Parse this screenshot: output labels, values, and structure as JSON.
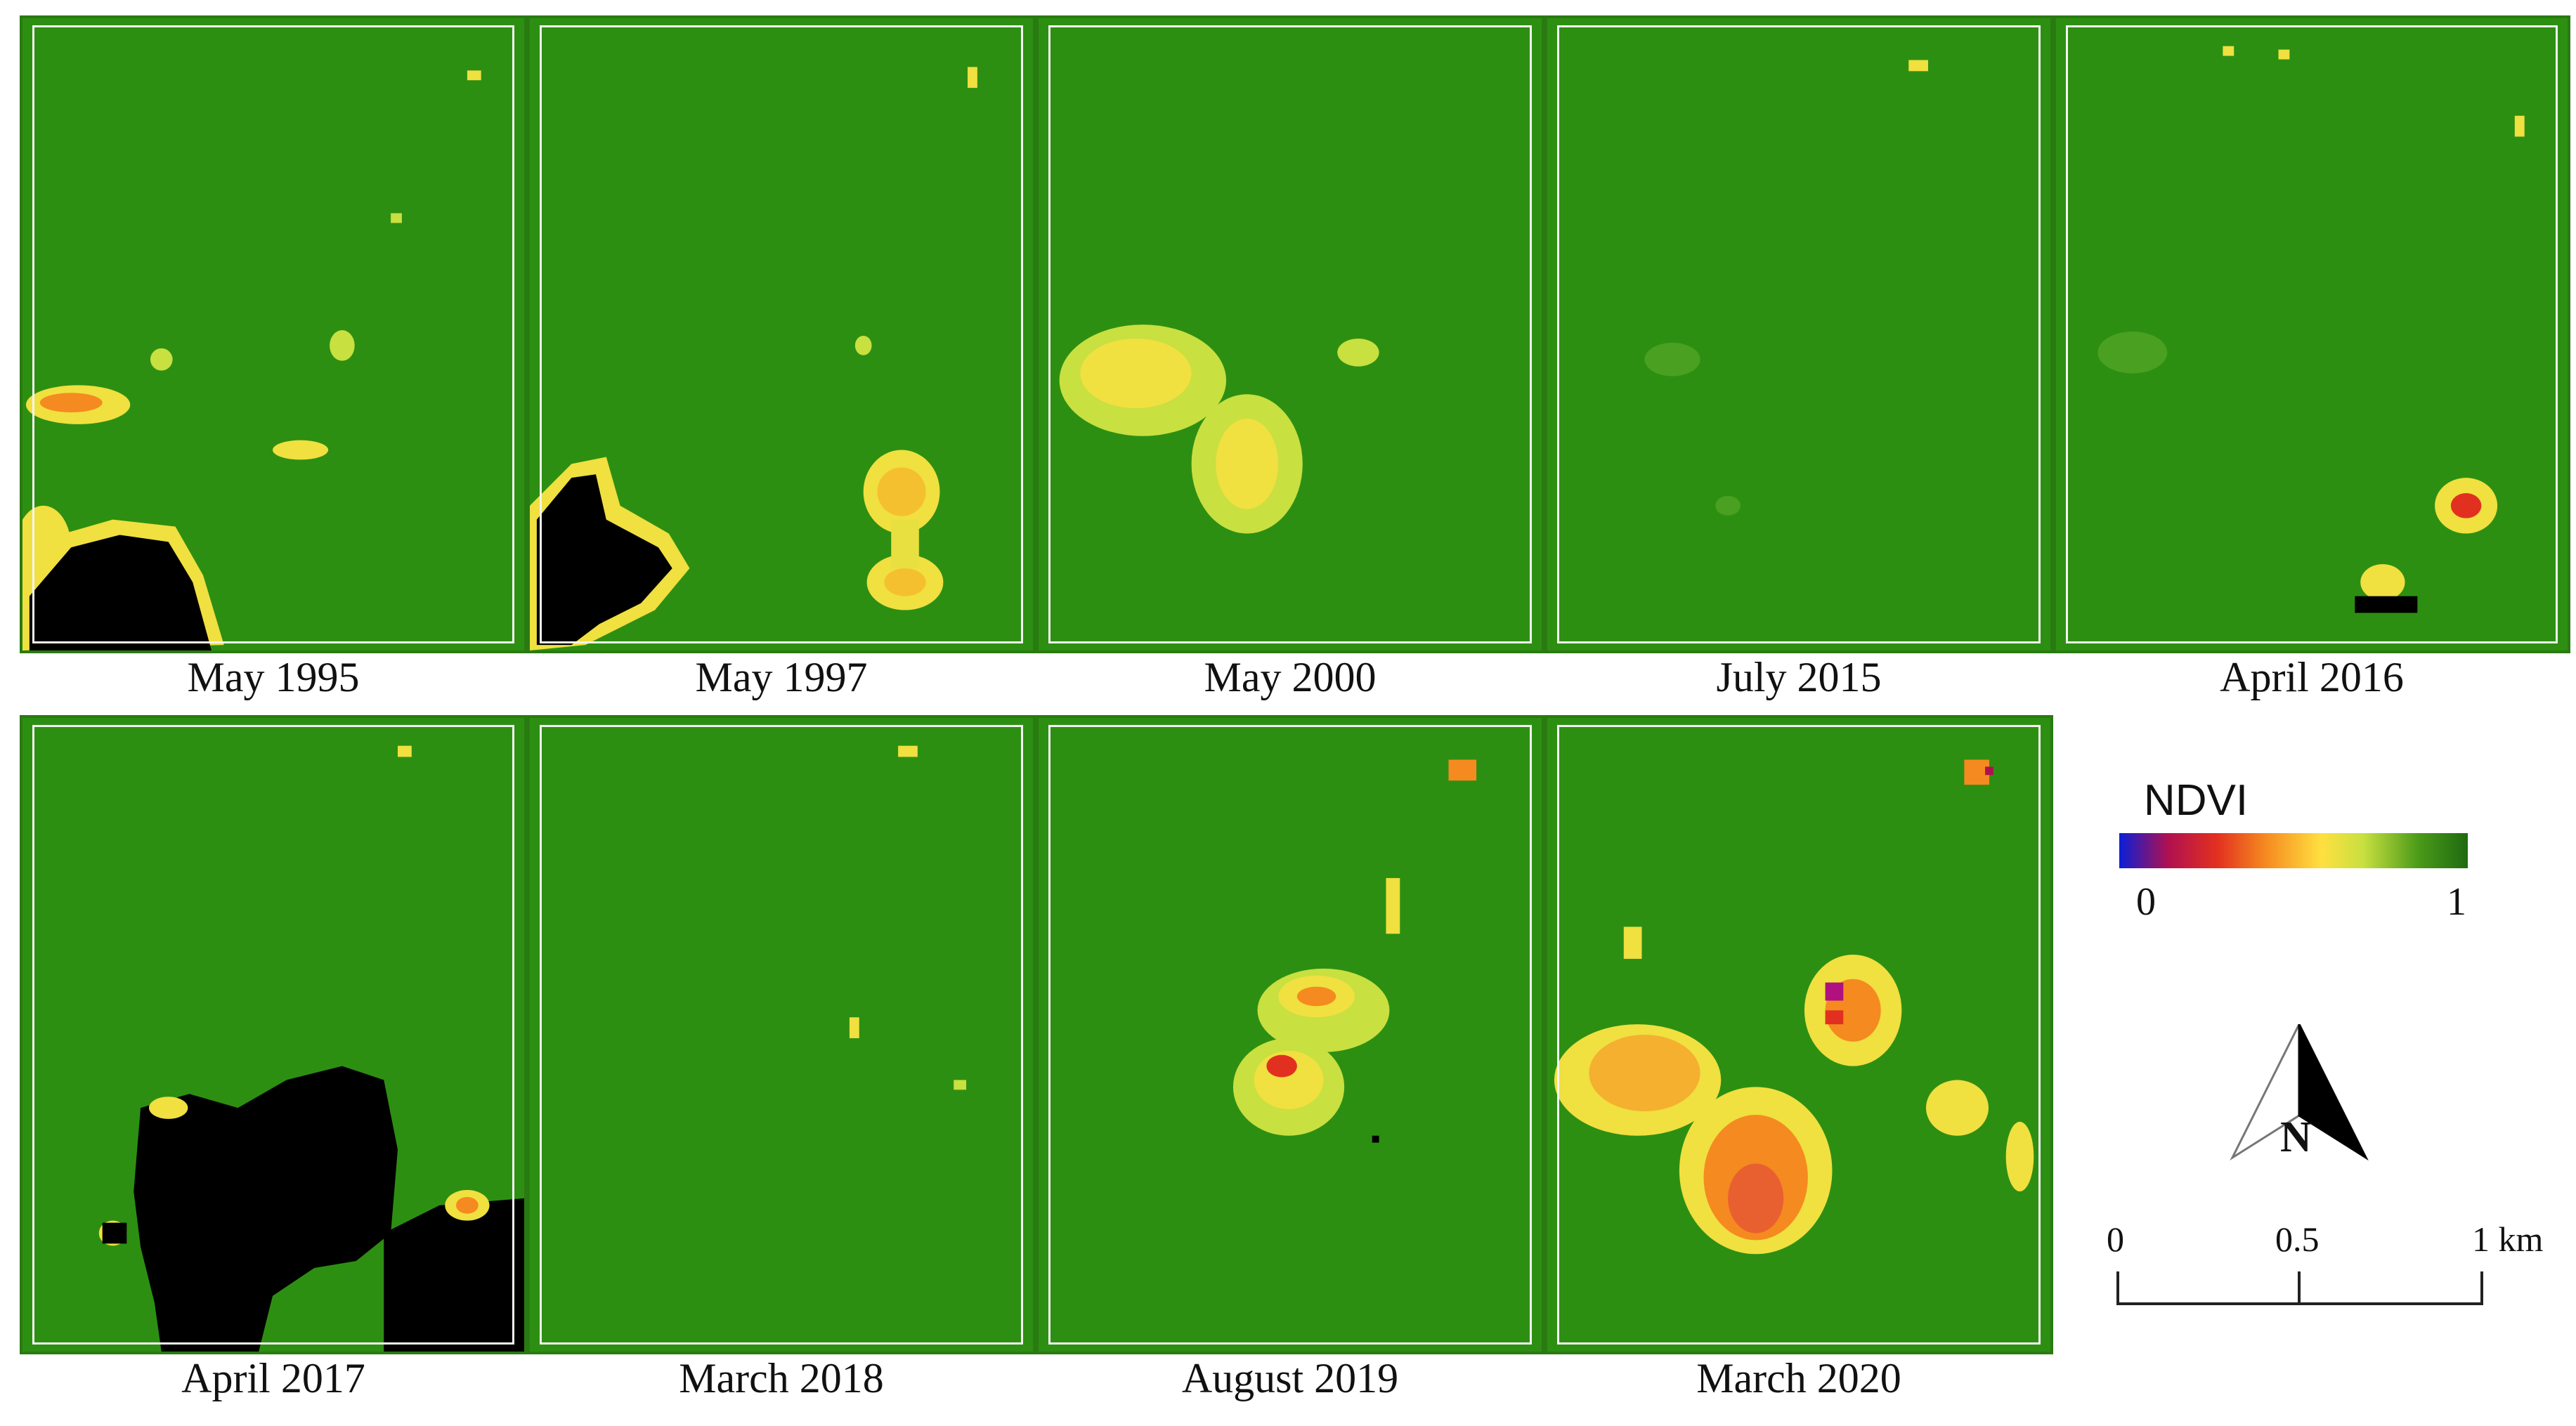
{
  "panels": [
    {
      "label": "May 1995"
    },
    {
      "label": "May 1997"
    },
    {
      "label": "May 2000"
    },
    {
      "label": "July 2015"
    },
    {
      "label": "April 2016"
    },
    {
      "label": "April 2017"
    },
    {
      "label": "March 2018"
    },
    {
      "label": "August 2019"
    },
    {
      "label": "March 2020"
    }
  ],
  "legend": {
    "title": "NDVI",
    "min_label": "0",
    "max_label": "1",
    "colors": {
      "low": "#0a1fd8",
      "mid_low": "#e23020",
      "mid": "#ffe040",
      "high": "#1f6a12"
    }
  },
  "north_arrow": {
    "letter": "N"
  },
  "scale_bar": {
    "labels": [
      "0",
      "0.5",
      "1 km"
    ]
  },
  "colors": {
    "vegetation": "#2d8f12",
    "no_data": "#000000",
    "frame": "#f4f4f4"
  }
}
